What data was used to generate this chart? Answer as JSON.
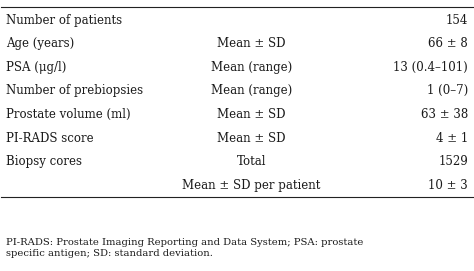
{
  "rows": [
    {
      "col1": "Number of patients",
      "col2": "",
      "col3": "154"
    },
    {
      "col1": "Age (years)",
      "col2": "Mean ± SD",
      "col3": "66 ± 8"
    },
    {
      "col1": "PSA (μg/l)",
      "col2": "Mean (range)",
      "col3": "13 (0.4–101)"
    },
    {
      "col1": "Number of prebiopsies",
      "col2": "Mean (range)",
      "col3": "1 (0–7)"
    },
    {
      "col1": "Prostate volume (ml)",
      "col2": "Mean ± SD",
      "col3": "63 ± 38"
    },
    {
      "col1": "PI-RADS score",
      "col2": "Mean ± SD",
      "col3": "4 ± 1"
    },
    {
      "col1": "Biopsy cores",
      "col2": "Total",
      "col3": "1529"
    },
    {
      "col1": "",
      "col2": "Mean ± SD per patient",
      "col3": "10 ± 3"
    }
  ],
  "footnote": "PI-RADS: Prostate Imaging Reporting and Data System; PSA: prostate\nspecific antigen; SD: standard deviation.",
  "background_color": "#ffffff",
  "text_color": "#1a1a1a",
  "line_color": "#222222",
  "font_size": 8.5,
  "footnote_font_size": 7.2
}
